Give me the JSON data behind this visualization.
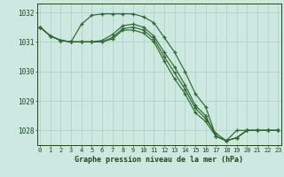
{
  "title": "Graphe pression niveau de la mer (hPa)",
  "xlabel_hours": [
    0,
    1,
    2,
    3,
    4,
    5,
    6,
    7,
    8,
    9,
    10,
    11,
    12,
    13,
    14,
    15,
    16,
    17,
    18,
    19,
    20,
    21,
    22,
    23
  ],
  "series": [
    [
      1031.5,
      1031.2,
      1031.05,
      1031.0,
      1031.0,
      1031.0,
      1031.05,
      1031.25,
      1031.55,
      1031.6,
      1031.5,
      1031.2,
      1030.65,
      1030.15,
      1029.55,
      1028.85,
      1028.5,
      1027.8,
      1027.65,
      1027.75,
      1028.0,
      1028.0,
      1028.0,
      1028.0
    ],
    [
      1031.5,
      1031.2,
      1031.05,
      1031.0,
      1031.0,
      1031.0,
      1031.0,
      1031.15,
      1031.45,
      1031.5,
      1031.4,
      1031.1,
      1030.5,
      1029.95,
      1029.4,
      1028.75,
      1028.4,
      1027.9,
      1027.65,
      1027.75,
      1028.0,
      1028.0,
      1028.0,
      1028.0
    ],
    [
      1031.5,
      1031.2,
      1031.05,
      1031.0,
      1031.0,
      1031.0,
      1031.0,
      1031.1,
      1031.4,
      1031.4,
      1031.3,
      1031.0,
      1030.35,
      1029.75,
      1029.25,
      1028.6,
      1028.3,
      1027.8,
      1027.65,
      1027.75,
      1028.0,
      1028.0,
      1028.0,
      1028.0
    ],
    [
      1031.5,
      1031.2,
      1031.05,
      1031.0,
      1031.6,
      1031.9,
      1031.95,
      1031.95,
      1031.95,
      1031.95,
      1031.85,
      1031.65,
      1031.15,
      1030.65,
      1030.0,
      1029.25,
      1028.8,
      1027.8,
      1027.65,
      1028.0,
      1028.0,
      1028.0,
      1028.0,
      1028.0
    ]
  ],
  "line_color": "#2d6a2d",
  "marker_color": "#2d6a2d",
  "bg_color": "#cce8e0",
  "grid_color": "#aad0c4",
  "label_color": "#1a4a1a",
  "ylim": [
    1027.5,
    1032.3
  ],
  "yticks": [
    1028,
    1029,
    1030,
    1031,
    1032
  ]
}
